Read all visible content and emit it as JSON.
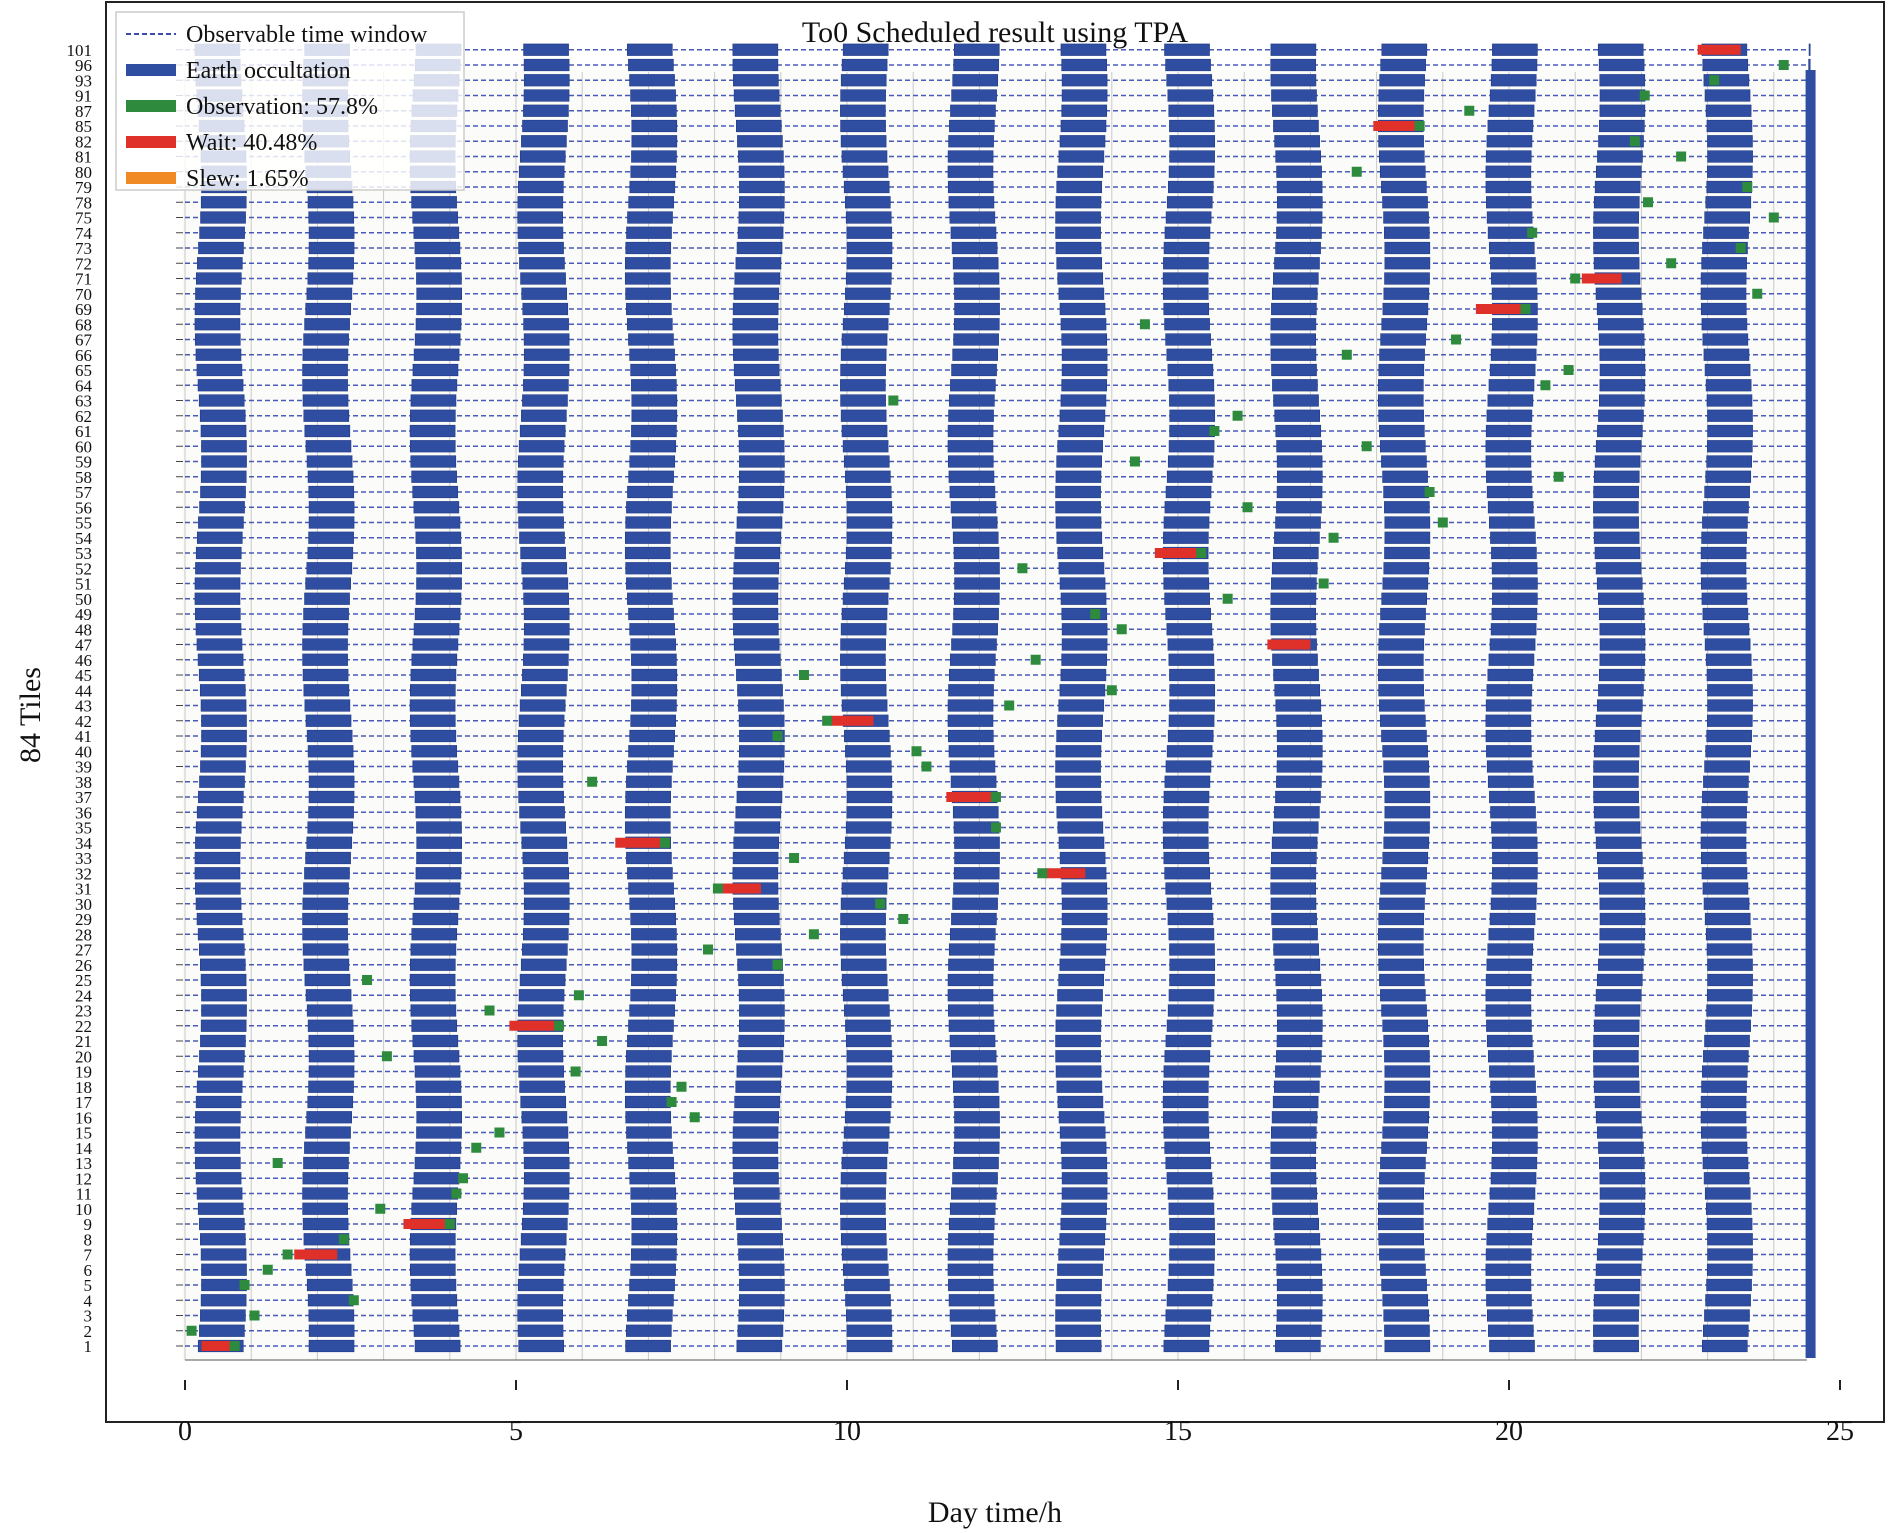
{
  "chart_data": {
    "type": "gantt",
    "title": "To0 Scheduled result using TPA",
    "xlabel": "Day time/h",
    "ylabel": "84 Tiles",
    "xlim": [
      0,
      25
    ],
    "xticks": [
      "0",
      "5",
      "10",
      "15",
      "20",
      "25"
    ],
    "yticks": [
      "1",
      "2",
      "3",
      "4",
      "5",
      "6",
      "7",
      "8",
      "9",
      "10",
      "11",
      "12",
      "13",
      "14",
      "15",
      "16",
      "17",
      "18",
      "19",
      "20",
      "21",
      "22",
      "23",
      "24",
      "25",
      "26",
      "27",
      "28",
      "29",
      "30",
      "31",
      "32",
      "33",
      "34",
      "35",
      "36",
      "37",
      "38",
      "39",
      "40",
      "41",
      "42",
      "43",
      "44",
      "45",
      "46",
      "47",
      "48",
      "49",
      "50",
      "51",
      "52",
      "53",
      "54",
      "55",
      "56",
      "57",
      "58",
      "59",
      "60",
      "61",
      "62",
      "63",
      "64",
      "65",
      "66",
      "67",
      "68",
      "69",
      "70",
      "71",
      "72",
      "73",
      "74",
      "75",
      "78",
      "79",
      "80",
      "81",
      "82",
      "85",
      "87",
      "91",
      "93",
      "96",
      "101"
    ],
    "grid": "on",
    "legend_position": "top-left",
    "legend": [
      {
        "label": "Observable time window",
        "style": "dashed",
        "color": "#3a4ba8"
      },
      {
        "label": "Earth occultation",
        "style": "bar",
        "color": "#2f4da1"
      },
      {
        "label": "Observation: 57.8%",
        "style": "bar",
        "color": "#2e8b3d"
      },
      {
        "label": "Wait: 40.48%",
        "style": "bar",
        "color": "#e0302a"
      },
      {
        "label": "Slew: 1.65%",
        "style": "bar",
        "color": "#f08a24"
      }
    ],
    "colors": {
      "window": "#4a5bb5",
      "occultation": "#2f4da1",
      "observation": "#2e8b3d",
      "wait": "#e0302a",
      "slew": "#f08a24"
    },
    "occultation_period_h": 1.625,
    "occultation_first_start_h": 0.2,
    "occultation_duration_h": 0.68,
    "wait_intervals": [
      {
        "row": 0,
        "start": 0.25,
        "end": 0.7
      },
      {
        "row": 6,
        "start": 1.65,
        "end": 2.3
      },
      {
        "row": 8,
        "start": 3.3,
        "end": 3.95
      },
      {
        "row": 21,
        "start": 4.9,
        "end": 5.6
      },
      {
        "row": 30,
        "start": 8.1,
        "end": 8.7
      },
      {
        "row": 31,
        "start": 13.0,
        "end": 13.6
      },
      {
        "row": 33,
        "start": 6.5,
        "end": 7.2
      },
      {
        "row": 36,
        "start": 11.5,
        "end": 12.2
      },
      {
        "row": 41,
        "start": 9.75,
        "end": 10.4
      },
      {
        "row": 46,
        "start": 16.35,
        "end": 17.0
      },
      {
        "row": 52,
        "start": 14.65,
        "end": 15.3
      },
      {
        "row": 68,
        "start": 19.5,
        "end": 20.2
      },
      {
        "row": 70,
        "start": 21.1,
        "end": 21.7
      },
      {
        "row": 80,
        "start": 17.95,
        "end": 18.6
      },
      {
        "row": 85,
        "start": 22.85,
        "end": 23.5
      }
    ],
    "observations": [
      {
        "row": 1,
        "t": 0.1
      },
      {
        "row": 0,
        "t": 0.75
      },
      {
        "row": 2,
        "t": 1.05
      },
      {
        "row": 3,
        "t": 2.55
      },
      {
        "row": 4,
        "t": 0.9
      },
      {
        "row": 5,
        "t": 1.25
      },
      {
        "row": 6,
        "t": 1.55
      },
      {
        "row": 7,
        "t": 2.4
      },
      {
        "row": 8,
        "t": 4.0
      },
      {
        "row": 9,
        "t": 2.95
      },
      {
        "row": 10,
        "t": 4.1
      },
      {
        "row": 11,
        "t": 4.2
      },
      {
        "row": 12,
        "t": 1.4
      },
      {
        "row": 13,
        "t": 4.4
      },
      {
        "row": 14,
        "t": 4.75
      },
      {
        "row": 15,
        "t": 7.7
      },
      {
        "row": 16,
        "t": 7.35
      },
      {
        "row": 17,
        "t": 7.5
      },
      {
        "row": 18,
        "t": 5.9
      },
      {
        "row": 19,
        "t": 3.05
      },
      {
        "row": 20,
        "t": 6.3
      },
      {
        "row": 21,
        "t": 5.65
      },
      {
        "row": 22,
        "t": 4.6
      },
      {
        "row": 23,
        "t": 5.95
      },
      {
        "row": 24,
        "t": 2.75
      },
      {
        "row": 25,
        "t": 8.95
      },
      {
        "row": 26,
        "t": 7.9
      },
      {
        "row": 27,
        "t": 9.5
      },
      {
        "row": 28,
        "t": 10.85
      },
      {
        "row": 29,
        "t": 10.5
      },
      {
        "row": 30,
        "t": 8.05
      },
      {
        "row": 31,
        "t": 12.95
      },
      {
        "row": 32,
        "t": 9.2
      },
      {
        "row": 33,
        "t": 7.25
      },
      {
        "row": 34,
        "t": 12.25
      },
      {
        "row": 36,
        "t": 12.25
      },
      {
        "row": 37,
        "t": 6.15
      },
      {
        "row": 38,
        "t": 11.2
      },
      {
        "row": 39,
        "t": 11.05
      },
      {
        "row": 40,
        "t": 8.95
      },
      {
        "row": 41,
        "t": 9.7
      },
      {
        "row": 42,
        "t": 12.45
      },
      {
        "row": 43,
        "t": 14.0
      },
      {
        "row": 44,
        "t": 9.35
      },
      {
        "row": 45,
        "t": 12.85
      },
      {
        "row": 47,
        "t": 14.15
      },
      {
        "row": 48,
        "t": 13.75
      },
      {
        "row": 49,
        "t": 15.75
      },
      {
        "row": 50,
        "t": 17.2
      },
      {
        "row": 51,
        "t": 12.65
      },
      {
        "row": 52,
        "t": 15.35
      },
      {
        "row": 53,
        "t": 17.35
      },
      {
        "row": 54,
        "t": 19.0
      },
      {
        "row": 55,
        "t": 16.05
      },
      {
        "row": 56,
        "t": 18.8
      },
      {
        "row": 57,
        "t": 20.75
      },
      {
        "row": 58,
        "t": 14.35
      },
      {
        "row": 59,
        "t": 17.85
      },
      {
        "row": 60,
        "t": 15.55
      },
      {
        "row": 61,
        "t": 15.9
      },
      {
        "row": 62,
        "t": 10.7
      },
      {
        "row": 63,
        "t": 20.55
      },
      {
        "row": 64,
        "t": 20.9
      },
      {
        "row": 65,
        "t": 17.55
      },
      {
        "row": 66,
        "t": 19.2
      },
      {
        "row": 67,
        "t": 14.5
      },
      {
        "row": 68,
        "t": 20.25
      },
      {
        "row": 69,
        "t": 23.75
      },
      {
        "row": 70,
        "t": 21.0
      },
      {
        "row": 71,
        "t": 22.45
      },
      {
        "row": 72,
        "t": 23.5
      },
      {
        "row": 73,
        "t": 20.35
      },
      {
        "row": 74,
        "t": 24.0
      },
      {
        "row": 75,
        "t": 22.1
      },
      {
        "row": 76,
        "t": 23.6
      },
      {
        "row": 77,
        "t": 17.7
      },
      {
        "row": 78,
        "t": 22.6
      },
      {
        "row": 79,
        "t": 21.9
      },
      {
        "row": 80,
        "t": 18.65
      },
      {
        "row": 81,
        "t": 19.4
      },
      {
        "row": 82,
        "t": 22.05
      },
      {
        "row": 83,
        "t": 23.1
      },
      {
        "row": 84,
        "t": 24.15
      }
    ]
  }
}
